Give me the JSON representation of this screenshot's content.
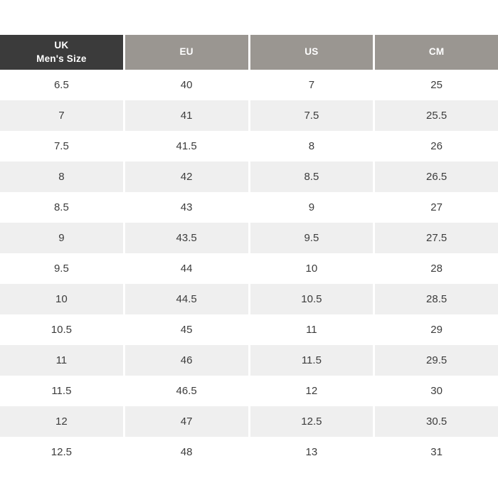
{
  "table": {
    "header": {
      "uk_line1": "UK",
      "uk_line2": "Men's Size",
      "eu": "EU",
      "us": "US",
      "cm": "CM"
    },
    "rows": [
      [
        "6.5",
        "40",
        "7",
        "25"
      ],
      [
        "7",
        "41",
        "7.5",
        "25.5"
      ],
      [
        "7.5",
        "41.5",
        "8",
        "26"
      ],
      [
        "8",
        "42",
        "8.5",
        "26.5"
      ],
      [
        "8.5",
        "43",
        "9",
        "27"
      ],
      [
        "9",
        "43.5",
        "9.5",
        "27.5"
      ],
      [
        "9.5",
        "44",
        "10",
        "28"
      ],
      [
        "10",
        "44.5",
        "10.5",
        "28.5"
      ],
      [
        "10.5",
        "45",
        "11",
        "29"
      ],
      [
        "11",
        "46",
        "11.5",
        "29.5"
      ],
      [
        "11.5",
        "46.5",
        "12",
        "30"
      ],
      [
        "12",
        "47",
        "12.5",
        "30.5"
      ],
      [
        "12.5",
        "48",
        "13",
        "31"
      ]
    ]
  },
  "colors": {
    "dark_header_bg": "#3b3b3b",
    "gray_header_bg": "#9a9691",
    "row_alt_bg": "#efefef",
    "header_text": "#ffffff",
    "body_text": "#3c3c3c",
    "page_bg": "#ffffff"
  },
  "chart_data": {
    "type": "table",
    "title": "",
    "columns": [
      "UK Men's Size",
      "EU",
      "US",
      "CM"
    ],
    "rows": [
      [
        "6.5",
        "40",
        "7",
        "25"
      ],
      [
        "7",
        "41",
        "7.5",
        "25.5"
      ],
      [
        "7.5",
        "41.5",
        "8",
        "26"
      ],
      [
        "8",
        "42",
        "8.5",
        "26.5"
      ],
      [
        "8.5",
        "43",
        "9",
        "27"
      ],
      [
        "9",
        "43.5",
        "9.5",
        "27.5"
      ],
      [
        "9.5",
        "44",
        "10",
        "28"
      ],
      [
        "10",
        "44.5",
        "10.5",
        "28.5"
      ],
      [
        "10.5",
        "45",
        "11",
        "29"
      ],
      [
        "11",
        "46",
        "11.5",
        "29.5"
      ],
      [
        "11.5",
        "46.5",
        "12",
        "30"
      ],
      [
        "12",
        "47",
        "12.5",
        "30.5"
      ],
      [
        "12.5",
        "48",
        "13",
        "31"
      ]
    ]
  }
}
